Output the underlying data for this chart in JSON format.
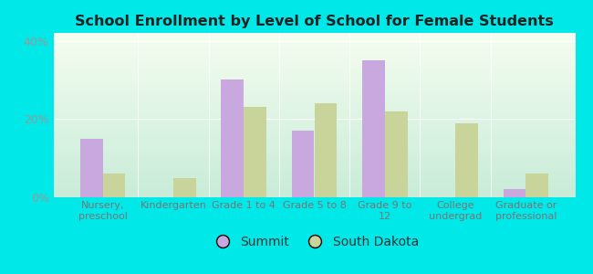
{
  "title": "School Enrollment by Level of School for Female Students",
  "categories": [
    "Nursery,\npreschool",
    "Kindergarten",
    "Grade 1 to 4",
    "Grade 5 to 8",
    "Grade 9 to\n12",
    "College\nundergrad",
    "Graduate or\nprofessional"
  ],
  "summit_values": [
    15,
    0,
    30,
    17,
    35,
    0,
    2
  ],
  "sd_values": [
    6,
    5,
    23,
    24,
    22,
    19,
    6
  ],
  "summit_color": "#c9a8e0",
  "sd_color": "#c8d49a",
  "background_color": "#00e8e8",
  "grad_color_top": "#f5fdf0",
  "grad_color_bottom": "#c8ecd8",
  "ylim": [
    0,
    42
  ],
  "yticks": [
    0,
    20,
    40
  ],
  "ytick_labels": [
    "0%",
    "20%",
    "40%"
  ],
  "legend_labels": [
    "Summit",
    "South Dakota"
  ],
  "bar_width": 0.32
}
